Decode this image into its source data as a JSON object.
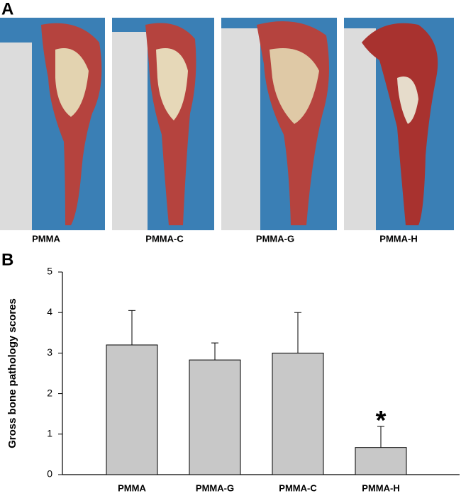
{
  "panel_letters": [
    "A",
    "B"
  ],
  "photos": [
    "PMMA",
    "PMMA-C",
    "PMMA-G",
    "PMMA-H"
  ],
  "chart_data": {
    "type": "bar",
    "ylabel": "Gross bone pathology scores",
    "categories": [
      "PMMA",
      "PMMA-G",
      "PMMA-C",
      "PMMA-H"
    ],
    "values": [
      3.2,
      2.83,
      3.0,
      0.67
    ],
    "errors": [
      0.85,
      0.42,
      1.0,
      0.52
    ],
    "color": "#c8c8c8",
    "annotation": "*",
    "ylim": [
      0,
      5
    ],
    "yticks": [
      0,
      1,
      2,
      3,
      4,
      5
    ]
  }
}
